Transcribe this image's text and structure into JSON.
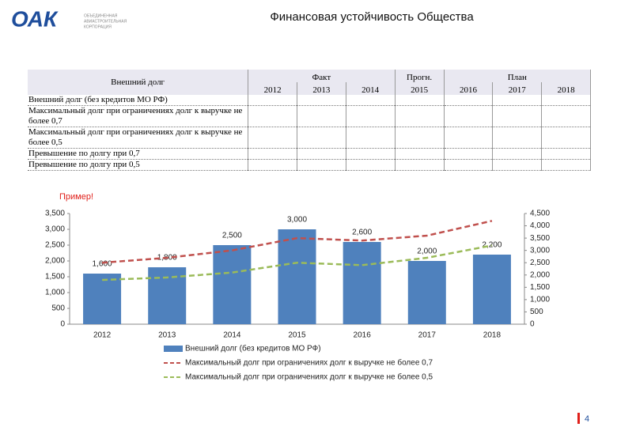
{
  "header": {
    "logo": "ОАК",
    "logo_text": [
      "ОБЪЕДИНЕННАЯ",
      "АВИАСТРОИТЕЛЬНАЯ",
      "КОРПОРАЦИЯ"
    ],
    "title": "Финансовая устойчивость Общества"
  },
  "table": {
    "header_label": "Внешний долг",
    "groups": [
      {
        "label": "Факт",
        "years": [
          "2012",
          "2013",
          "2014"
        ]
      },
      {
        "label": "Прогн.",
        "years": [
          "2015"
        ]
      },
      {
        "label": "План",
        "years": [
          "2016",
          "2017",
          "2018"
        ]
      }
    ],
    "rows": [
      "Внешний долг (без кредитов МО РФ)",
      "Максимальный долг при ограничениях долг к выручке не более 0,7",
      "Максимальный долг при ограничениях долг к выручке не более 0,5",
      "Превышение по долгу при 0,7",
      "Превышение по долгу при 0,5"
    ]
  },
  "note": "Пример!",
  "chart_data": {
    "type": "bar",
    "categories": [
      "2012",
      "2013",
      "2014",
      "2015",
      "2016",
      "2017",
      "2018"
    ],
    "series": [
      {
        "name": "Внешний долг (без кредитов МО РФ)",
        "type": "bar",
        "color": "#4f81bd",
        "values": [
          1600,
          1800,
          2500,
          3000,
          2600,
          2000,
          2200
        ],
        "value_labels": [
          "1,600",
          "1,800",
          "2,500",
          "3,000",
          "2,600",
          "2,000",
          "2,200"
        ]
      },
      {
        "name": "Максимальный долг при ограничениях долг к выручке не более 0,7",
        "type": "line",
        "axis": "y2",
        "color": "#c0504d",
        "values": [
          2500,
          2700,
          3000,
          3500,
          3400,
          3600,
          4200
        ]
      },
      {
        "name": "Максимальный долг при ограничениях долг к выручке не более 0,5",
        "type": "line",
        "axis": "y2",
        "color": "#9bbb59",
        "values": [
          1800,
          1900,
          2100,
          2500,
          2400,
          2700,
          3200
        ]
      }
    ],
    "ylim": [
      0,
      3500
    ],
    "yticks": [
      0,
      500,
      {
        "value": 1000,
        "label": "1,000"
      },
      {
        "value": 1500,
        "label": "1,500"
      },
      {
        "value": 2000,
        "label": "2,000"
      },
      {
        "value": 2500,
        "label": "2,500"
      },
      {
        "value": 3000,
        "label": "3,000"
      },
      {
        "value": 3500,
        "label": "3,500"
      }
    ],
    "y2lim": [
      0,
      4500
    ],
    "y2ticks": [
      0,
      500,
      {
        "value": 1000,
        "label": "1,000"
      },
      {
        "value": 1500,
        "label": "1,500"
      },
      {
        "value": 2000,
        "label": "2,000"
      },
      {
        "value": 2500,
        "label": "2,500"
      },
      {
        "value": 3000,
        "label": "3,000"
      },
      {
        "value": 3500,
        "label": "3,500"
      },
      {
        "value": 4000,
        "label": "4,000"
      },
      {
        "value": 4500,
        "label": "4,500"
      }
    ],
    "legend": "bottom"
  },
  "page_number": "4"
}
